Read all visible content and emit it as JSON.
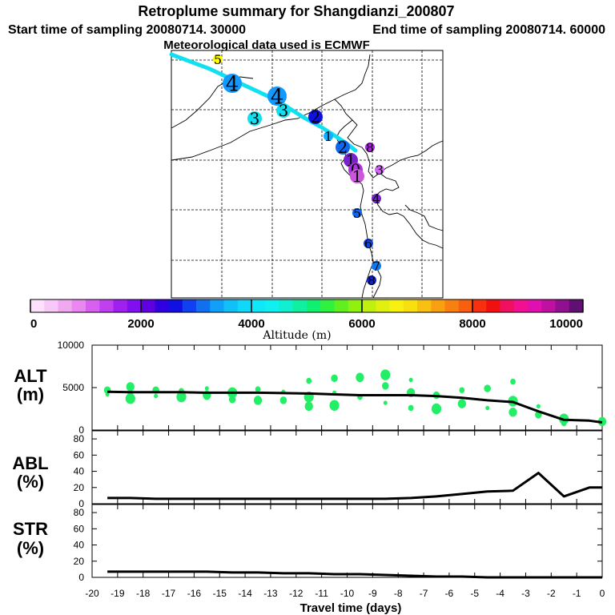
{
  "header": {
    "title": "Retroplume summary for Shangdianzi_200807",
    "start_label": "Start time of sampling 20080714. 30000",
    "end_label": "End time of sampling 20080714. 60000",
    "met_label": "Meteorological data used is ECMWF"
  },
  "colors": {
    "path": "#11e0f0",
    "curve": "#000000",
    "points": "#22ee66"
  },
  "map": {
    "markers": [
      {
        "label": "5",
        "color": "#ffff00",
        "size": "s"
      },
      {
        "label": "4",
        "color": "#1199ff",
        "size": "l"
      },
      {
        "label": "3",
        "color": "#11e0f0",
        "size": "m"
      },
      {
        "label": "4",
        "color": "#1199ff",
        "size": "l"
      },
      {
        "label": "3",
        "color": "#11e0f0",
        "size": "m"
      },
      {
        "label": "2",
        "color": "#1111dd",
        "size": "m"
      },
      {
        "label": "1",
        "color": "#11b0ff",
        "size": "s"
      },
      {
        "label": "2",
        "color": "#1166ee",
        "size": "m"
      },
      {
        "label": "1",
        "color": "#7722cc",
        "size": "m"
      },
      {
        "label": "0",
        "color": "#aa33dd",
        "size": "m"
      },
      {
        "label": "1",
        "color": "#cc55dd",
        "size": "m"
      },
      {
        "label": "8",
        "color": "#aa22dd",
        "size": "s"
      },
      {
        "label": "3",
        "color": "#cc66ee",
        "size": "s"
      },
      {
        "label": "4",
        "color": "#7722cc",
        "size": "s"
      },
      {
        "label": "5",
        "color": "#1166ee",
        "size": "s"
      },
      {
        "label": "6",
        "color": "#1144dd",
        "size": "s"
      },
      {
        "label": "7",
        "color": "#1177ee",
        "size": "s"
      },
      {
        "label": "8",
        "color": "#1122cc",
        "size": "s"
      }
    ]
  },
  "colorbar": {
    "title": "Altitude (m)",
    "tick_labels": [
      "0",
      "2000",
      "4000",
      "6000",
      "8000",
      "10000"
    ],
    "colors": [
      "#fce0fc",
      "#f8c8f8",
      "#f0a8f0",
      "#e888f0",
      "#d860f0",
      "#c040f0",
      "#a020f0",
      "#8010f0",
      "#6000e0",
      "#3000e0",
      "#1010e0",
      "#1040f0",
      "#1070f0",
      "#10a0f8",
      "#10c0f8",
      "#10d8f8",
      "#10e8f8",
      "#10f0f0",
      "#10f0d0",
      "#10f0a0",
      "#10f070",
      "#30f040",
      "#60f020",
      "#90f010",
      "#c0f010",
      "#e0f010",
      "#f8f010",
      "#f8e010",
      "#f8c010",
      "#f8a010",
      "#f88010",
      "#f86010",
      "#f83010",
      "#f01010",
      "#f01060",
      "#f01090",
      "#e010b0",
      "#c010a0",
      "#901090",
      "#601070"
    ]
  },
  "chart_data": [
    {
      "type": "scatter",
      "title": "ALT (m)",
      "ylabel_top": "ALT",
      "ylabel_bottom": "(m)",
      "xlabel": "Travel time (days)",
      "ylim": [
        0,
        10000
      ],
      "yticks": [
        "0",
        "5000",
        "10000"
      ],
      "x": [
        -19.4,
        -18.5,
        -17.5,
        -16.5,
        -15.5,
        -14.5,
        -13.5,
        -12.5,
        -11.5,
        -10.5,
        -9.5,
        -8.5,
        -7.5,
        -6.5,
        -5.5,
        -4.5,
        -3.5,
        -2.5,
        -1.5,
        -0.5,
        0
      ],
      "y": [
        4500,
        4450,
        4450,
        4450,
        4400,
        4400,
        4400,
        4350,
        4300,
        4200,
        4100,
        4100,
        4100,
        4000,
        3800,
        3500,
        3300,
        2200,
        1200,
        1100,
        900
      ],
      "points": [
        {
          "x": -19.4,
          "y": 4200
        },
        {
          "x": -19.4,
          "y": 4700
        },
        {
          "x": -18.5,
          "y": 3700
        },
        {
          "x": -18.5,
          "y": 4300
        },
        {
          "x": -18.5,
          "y": 5100
        },
        {
          "x": -17.5,
          "y": 4000
        },
        {
          "x": -17.5,
          "y": 4700
        },
        {
          "x": -16.5,
          "y": 3900
        },
        {
          "x": -16.5,
          "y": 4600
        },
        {
          "x": -15.5,
          "y": 4100
        },
        {
          "x": -15.5,
          "y": 4900
        },
        {
          "x": -14.5,
          "y": 3600
        },
        {
          "x": -14.5,
          "y": 4400
        },
        {
          "x": -13.5,
          "y": 4800
        },
        {
          "x": -13.5,
          "y": 3500
        },
        {
          "x": -12.5,
          "y": 4500
        },
        {
          "x": -12.5,
          "y": 3500
        },
        {
          "x": -11.5,
          "y": 3900
        },
        {
          "x": -11.5,
          "y": 5800
        },
        {
          "x": -11.5,
          "y": 2800
        },
        {
          "x": -10.5,
          "y": 4400
        },
        {
          "x": -10.5,
          "y": 6100
        },
        {
          "x": -10.5,
          "y": 2900
        },
        {
          "x": -9.5,
          "y": 3900
        },
        {
          "x": -9.5,
          "y": 6200
        },
        {
          "x": -8.5,
          "y": 3200
        },
        {
          "x": -8.5,
          "y": 5200
        },
        {
          "x": -8.5,
          "y": 6500
        },
        {
          "x": -7.5,
          "y": 2600
        },
        {
          "x": -7.5,
          "y": 4400
        },
        {
          "x": -7.5,
          "y": 5900
        },
        {
          "x": -6.5,
          "y": 4100
        },
        {
          "x": -6.5,
          "y": 2500
        },
        {
          "x": -5.5,
          "y": 4700
        },
        {
          "x": -5.5,
          "y": 3100
        },
        {
          "x": -4.5,
          "y": 2600
        },
        {
          "x": -4.5,
          "y": 4900
        },
        {
          "x": -3.5,
          "y": 3400
        },
        {
          "x": -3.5,
          "y": 5700
        },
        {
          "x": -3.5,
          "y": 2100
        },
        {
          "x": -2.5,
          "y": 2800
        },
        {
          "x": -2.5,
          "y": 1800
        },
        {
          "x": -1.5,
          "y": 1300
        },
        {
          "x": -1.5,
          "y": 800
        },
        {
          "x": 0,
          "y": 1000
        }
      ]
    },
    {
      "type": "line",
      "title": "ABL (%)",
      "ylabel_top": "ABL",
      "ylabel_bottom": "(%)",
      "ylim": [
        0,
        90
      ],
      "yticks": [
        "0",
        "20",
        "40",
        "60",
        "80"
      ],
      "x": [
        -19.4,
        -18.5,
        -17.5,
        -16.5,
        -15.5,
        -14.5,
        -13.5,
        -12.5,
        -11.5,
        -10.5,
        -9.5,
        -8.5,
        -7.5,
        -6.5,
        -5.5,
        -4.5,
        -3.5,
        -2.5,
        -1.5,
        -0.5,
        0
      ],
      "y": [
        7,
        7,
        6,
        6,
        6,
        6,
        6,
        6,
        6,
        6,
        6,
        6,
        7,
        9,
        12,
        15,
        16,
        38,
        9,
        20,
        20
      ]
    },
    {
      "type": "line",
      "title": "STR (%)",
      "ylabel_top": "STR",
      "ylabel_bottom": "(%)",
      "xlabel": "Travel time (days)",
      "ylim": [
        0,
        90
      ],
      "yticks": [
        "0",
        "20",
        "40",
        "60",
        "80"
      ],
      "xticks": [
        "-20",
        "-19",
        "-18",
        "-17",
        "-16",
        "-15",
        "-14",
        "-13",
        "-12",
        "-11",
        "-10",
        "-9",
        "-8",
        "-7",
        "-6",
        "-5",
        "-4",
        "-3",
        "-2",
        "-1",
        "0"
      ],
      "x": [
        -19.4,
        -18.5,
        -17.5,
        -16.5,
        -15.5,
        -14.5,
        -13.5,
        -12.5,
        -11.5,
        -10.5,
        -9.5,
        -8.5,
        -7.5,
        -6.5,
        -5.5,
        -4.5,
        -3.5,
        -2.5,
        -1.5,
        -0.5,
        0
      ],
      "y": [
        7,
        7,
        7,
        7,
        7,
        6,
        6,
        5,
        5,
        4,
        4,
        3,
        2,
        1,
        1,
        0,
        0,
        0,
        0,
        0,
        0
      ]
    }
  ]
}
